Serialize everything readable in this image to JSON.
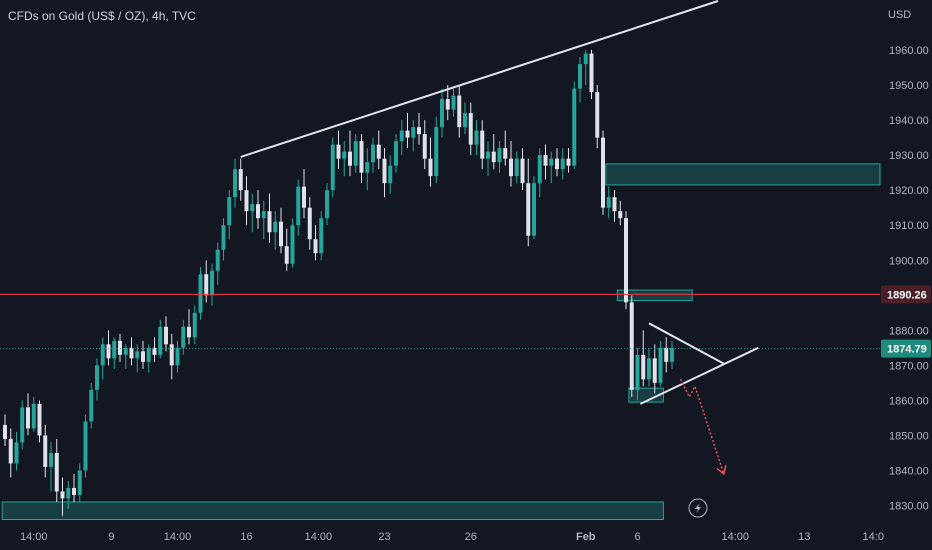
{
  "header": {
    "title": "CFDs on Gold (US$ / OZ), 4h, TVC"
  },
  "colors": {
    "background": "#131722",
    "bull": "#26a69a",
    "bear": "#e0e3eb",
    "price_line": "#26a69a",
    "resistance_line": "#f23645",
    "zone": "#26a69a",
    "trendline": "#e0e3eb",
    "projection_arrow": "#f7525f"
  },
  "chart_data": {
    "type": "candlestick",
    "title": "CFDs on Gold (US$ / OZ), 4h, TVC",
    "currency": "USD",
    "y_ticks": [
      "1830.00",
      "1840.00",
      "1850.00",
      "1860.00",
      "1870.00",
      "1880.00",
      "1890.00",
      "1900.00",
      "1910.00",
      "1920.00",
      "1930.00",
      "1940.00",
      "1950.00",
      "1960.00"
    ],
    "ylim": [
      1826,
      1974
    ],
    "x_tick_labels": [
      "14:00",
      "9",
      "14:00",
      "16",
      "14:00",
      "23",
      "26",
      "Feb",
      "6",
      "14:00",
      "13",
      "14:0"
    ],
    "price_labels": {
      "current": "1874.79",
      "horizontal_level": "1890.26"
    },
    "horizontal_level": 1890.26,
    "current_price": 1874.79,
    "zones": [
      {
        "name": "supply-zone-top",
        "from_bar": 105,
        "to_bar": "end",
        "low": 1921.5,
        "high": 1927.5
      },
      {
        "name": "supply-zone-mid",
        "from_bar": 107,
        "to_bar": 119,
        "low": 1888.5,
        "high": 1891.5
      },
      {
        "name": "demand-zone-small",
        "from_bar": 109,
        "to_bar": 114,
        "low": 1859.5,
        "high": 1863.5
      },
      {
        "name": "demand-zone-bottom",
        "from_bar": 0,
        "to_bar": 114,
        "low": 1826,
        "high": 1831
      }
    ],
    "trendlines": [
      {
        "name": "upper-trendline",
        "from": [
          41,
          1929.5
        ],
        "to": [
          124,
          1974
        ]
      },
      {
        "name": "triangle-upper",
        "from": [
          112,
          1882
        ],
        "to": [
          125,
          1870.5
        ]
      },
      {
        "name": "triangle-lower",
        "from": [
          110.5,
          1859
        ],
        "to": [
          131,
          1875
        ]
      }
    ],
    "projection": [
      [
        117.5,
        1866
      ],
      [
        119,
        1861
      ],
      [
        120,
        1864
      ],
      [
        125,
        1839
      ]
    ],
    "candles": [
      [
        1853,
        1856,
        1847,
        1849
      ],
      [
        1849,
        1852,
        1838,
        1842
      ],
      [
        1842,
        1851,
        1840,
        1848
      ],
      [
        1848,
        1860,
        1846,
        1858
      ],
      [
        1858,
        1862,
        1850,
        1852
      ],
      [
        1852,
        1861,
        1851,
        1859
      ],
      [
        1859,
        1860,
        1848,
        1850
      ],
      [
        1850,
        1853,
        1838,
        1841
      ],
      [
        1841,
        1848,
        1834,
        1845
      ],
      [
        1845,
        1849,
        1831,
        1834
      ],
      [
        1834,
        1838,
        1827,
        1832
      ],
      [
        1832,
        1837,
        1829,
        1835
      ],
      [
        1835,
        1839,
        1831,
        1833
      ],
      [
        1833,
        1842,
        1831,
        1840
      ],
      [
        1840,
        1856,
        1838,
        1854
      ],
      [
        1854,
        1865,
        1852,
        1863
      ],
      [
        1863,
        1872,
        1860,
        1870
      ],
      [
        1870,
        1878,
        1866,
        1876
      ],
      [
        1876,
        1880,
        1870,
        1872
      ],
      [
        1872,
        1878,
        1869,
        1877
      ],
      [
        1877,
        1879,
        1871,
        1873
      ],
      [
        1873,
        1876,
        1869,
        1875
      ],
      [
        1875,
        1878,
        1870,
        1872
      ],
      [
        1872,
        1876,
        1868,
        1874
      ],
      [
        1874,
        1877,
        1869,
        1871
      ],
      [
        1871,
        1876,
        1868,
        1875
      ],
      [
        1875,
        1878,
        1871,
        1873
      ],
      [
        1873,
        1883,
        1872,
        1881
      ],
      [
        1881,
        1884,
        1874,
        1876
      ],
      [
        1876,
        1879,
        1866,
        1870
      ],
      [
        1870,
        1877,
        1868,
        1875
      ],
      [
        1875,
        1883,
        1873,
        1881
      ],
      [
        1881,
        1886,
        1876,
        1878
      ],
      [
        1878,
        1887,
        1876,
        1885
      ],
      [
        1885,
        1898,
        1883,
        1896
      ],
      [
        1896,
        1900,
        1888,
        1890
      ],
      [
        1890,
        1899,
        1887,
        1897
      ],
      [
        1897,
        1905,
        1893,
        1903
      ],
      [
        1903,
        1912,
        1900,
        1910
      ],
      [
        1910,
        1920,
        1906,
        1918
      ],
      [
        1918,
        1929,
        1915,
        1926
      ],
      [
        1926,
        1929,
        1917,
        1920
      ],
      [
        1920,
        1924,
        1910,
        1914
      ],
      [
        1914,
        1919,
        1908,
        1916
      ],
      [
        1916,
        1920,
        1909,
        1912
      ],
      [
        1912,
        1917,
        1906,
        1914
      ],
      [
        1914,
        1919,
        1905,
        1908
      ],
      [
        1908,
        1914,
        1903,
        1911
      ],
      [
        1911,
        1915,
        1902,
        1904
      ],
      [
        1904,
        1909,
        1897,
        1899
      ],
      [
        1899,
        1912,
        1898,
        1910
      ],
      [
        1910,
        1923,
        1907,
        1921
      ],
      [
        1921,
        1926,
        1912,
        1915
      ],
      [
        1915,
        1918,
        1903,
        1906
      ],
      [
        1906,
        1910,
        1900,
        1902
      ],
      [
        1902,
        1914,
        1900,
        1912
      ],
      [
        1912,
        1922,
        1910,
        1920
      ],
      [
        1920,
        1935,
        1918,
        1933
      ],
      [
        1933,
        1937,
        1926,
        1929
      ],
      [
        1929,
        1934,
        1924,
        1931
      ],
      [
        1931,
        1937,
        1924,
        1927
      ],
      [
        1927,
        1936,
        1925,
        1934
      ],
      [
        1934,
        1936,
        1922,
        1925
      ],
      [
        1925,
        1932,
        1920,
        1928
      ],
      [
        1928,
        1935,
        1925,
        1933
      ],
      [
        1933,
        1937,
        1926,
        1929
      ],
      [
        1929,
        1932,
        1918,
        1922
      ],
      [
        1922,
        1930,
        1919,
        1927
      ],
      [
        1927,
        1936,
        1925,
        1934
      ],
      [
        1934,
        1940,
        1930,
        1937
      ],
      [
        1937,
        1942,
        1932,
        1935
      ],
      [
        1935,
        1940,
        1931,
        1938
      ],
      [
        1938,
        1942,
        1933,
        1936
      ],
      [
        1936,
        1940,
        1926,
        1929
      ],
      [
        1929,
        1935,
        1921,
        1924
      ],
      [
        1924,
        1941,
        1922,
        1938
      ],
      [
        1938,
        1949,
        1935,
        1946
      ],
      [
        1946,
        1950,
        1940,
        1943
      ],
      [
        1943,
        1949,
        1941,
        1947
      ],
      [
        1947,
        1950,
        1935,
        1938
      ],
      [
        1938,
        1945,
        1936,
        1942
      ],
      [
        1942,
        1945,
        1930,
        1933
      ],
      [
        1933,
        1940,
        1930,
        1937
      ],
      [
        1937,
        1940,
        1926,
        1929
      ],
      [
        1929,
        1934,
        1924,
        1931
      ],
      [
        1931,
        1936,
        1926,
        1928
      ],
      [
        1928,
        1934,
        1925,
        1932
      ],
      [
        1932,
        1937,
        1927,
        1929
      ],
      [
        1929,
        1934,
        1921,
        1924
      ],
      [
        1924,
        1931,
        1922,
        1929
      ],
      [
        1929,
        1932,
        1920,
        1922
      ],
      [
        1922,
        1929,
        1904,
        1907
      ],
      [
        1907,
        1924,
        1906,
        1922
      ],
      [
        1922,
        1932,
        1918,
        1930
      ],
      [
        1930,
        1933,
        1923,
        1927
      ],
      [
        1927,
        1931,
        1922,
        1929
      ],
      [
        1929,
        1932,
        1924,
        1926
      ],
      [
        1926,
        1932,
        1923,
        1929
      ],
      [
        1929,
        1932,
        1925,
        1927
      ],
      [
        1927,
        1951,
        1926,
        1949
      ],
      [
        1949,
        1958,
        1945,
        1956
      ],
      [
        1956,
        1960,
        1950,
        1959
      ],
      [
        1959,
        1960,
        1946,
        1948
      ],
      [
        1948,
        1950,
        1932,
        1935
      ],
      [
        1935,
        1937,
        1913,
        1915
      ],
      [
        1915,
        1921,
        1912,
        1918
      ],
      [
        1918,
        1920,
        1911,
        1914
      ],
      [
        1914,
        1917,
        1910,
        1912
      ],
      [
        1912,
        1914,
        1886,
        1888
      ],
      [
        1888,
        1890,
        1861,
        1863
      ],
      [
        1863,
        1875,
        1860,
        1873
      ],
      [
        1873,
        1880,
        1864,
        1866
      ],
      [
        1866,
        1875,
        1864,
        1872
      ],
      [
        1872,
        1876,
        1862,
        1865
      ],
      [
        1865,
        1877,
        1864,
        1875
      ],
      [
        1875,
        1878,
        1868,
        1871
      ],
      [
        1871,
        1877,
        1869,
        1875
      ]
    ]
  }
}
